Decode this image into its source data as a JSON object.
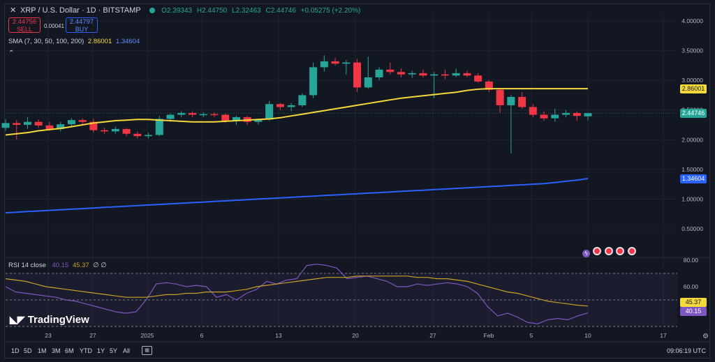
{
  "header": {
    "symbol": "XRP / U.S. Dollar · 1D · BITSTAMP",
    "open": "O2.39343",
    "high": "H2.44750",
    "low": "L2.32463",
    "close": "C2.44746",
    "change": "+0.05275 (+2.20%)"
  },
  "trade": {
    "sell_price": "2.44756",
    "sell_label": "SELL",
    "spread": "0.00041",
    "buy_price": "2.44797",
    "buy_label": "BUY"
  },
  "sma_legend": {
    "label": "SMA (7, 30, 50, 100, 200)",
    "v1": "2.86001",
    "v2": "1.34604"
  },
  "rsi_legend": {
    "label": "RSI 14 close",
    "v1": "40.15",
    "v2": "45.37",
    "extra": "∅ ∅"
  },
  "price_tags": {
    "sma_short": "2.86001",
    "last": "2.44746",
    "sma_long": "1.34604",
    "rsi_ma": "45.37",
    "rsi": "40.15"
  },
  "x_labels": [
    "23",
    "27",
    "2025",
    "6",
    "13",
    "20",
    "27",
    "Feb",
    "5",
    "10",
    "17"
  ],
  "timeframes": [
    "1D",
    "5D",
    "1M",
    "3M",
    "6M",
    "YTD",
    "1Y",
    "5Y",
    "All"
  ],
  "clock": "09:06:19 UTC",
  "brand": "TradingView",
  "colors": {
    "up": "#26a69a",
    "down": "#f23645",
    "sma_yellow": "#f5d83a",
    "sma_blue": "#2962ff",
    "rsi_line": "#7e57c2",
    "rsi_ma": "#c9a227"
  },
  "chart_data": [
    {
      "type": "candlestick",
      "title": "XRP / U.S. Dollar · 1D · BITSTAMP",
      "y_ticks": [
        "4.00000",
        "3.50000",
        "3.00000",
        "2.50000",
        "2.00000",
        "1.50000",
        "1.00000",
        "0.50000"
      ],
      "ylim": [
        0.3,
        4.2
      ],
      "x_tick_labels": [
        "23",
        "27",
        "2025",
        "6",
        "13",
        "20",
        "27",
        "Feb",
        "5",
        "10",
        "17"
      ],
      "candles": [
        {
          "o": 2.2,
          "h": 2.35,
          "l": 2.15,
          "c": 2.28
        },
        {
          "o": 2.28,
          "h": 2.33,
          "l": 2.0,
          "c": 2.25
        },
        {
          "o": 2.25,
          "h": 2.38,
          "l": 2.18,
          "c": 2.3
        },
        {
          "o": 2.3,
          "h": 2.34,
          "l": 2.2,
          "c": 2.24
        },
        {
          "o": 2.24,
          "h": 2.3,
          "l": 2.15,
          "c": 2.18
        },
        {
          "o": 2.18,
          "h": 2.3,
          "l": 2.14,
          "c": 2.26
        },
        {
          "o": 2.26,
          "h": 2.36,
          "l": 2.22,
          "c": 2.33
        },
        {
          "o": 2.33,
          "h": 2.36,
          "l": 2.25,
          "c": 2.3
        },
        {
          "o": 2.3,
          "h": 2.35,
          "l": 2.12,
          "c": 2.16
        },
        {
          "o": 2.16,
          "h": 2.2,
          "l": 2.1,
          "c": 2.14
        },
        {
          "o": 2.14,
          "h": 2.22,
          "l": 2.1,
          "c": 2.18
        },
        {
          "o": 2.18,
          "h": 2.2,
          "l": 2.06,
          "c": 2.1
        },
        {
          "o": 2.1,
          "h": 2.14,
          "l": 2.02,
          "c": 2.06
        },
        {
          "o": 2.06,
          "h": 2.12,
          "l": 2.02,
          "c": 2.08
        },
        {
          "o": 2.08,
          "h": 2.4,
          "l": 2.06,
          "c": 2.35
        },
        {
          "o": 2.35,
          "h": 2.44,
          "l": 2.3,
          "c": 2.42
        },
        {
          "o": 2.42,
          "h": 2.48,
          "l": 2.38,
          "c": 2.45
        },
        {
          "o": 2.45,
          "h": 2.48,
          "l": 2.38,
          "c": 2.42
        },
        {
          "o": 2.42,
          "h": 2.46,
          "l": 2.38,
          "c": 2.43
        },
        {
          "o": 2.43,
          "h": 2.46,
          "l": 2.38,
          "c": 2.42
        },
        {
          "o": 2.42,
          "h": 2.44,
          "l": 2.28,
          "c": 2.32
        },
        {
          "o": 2.32,
          "h": 2.4,
          "l": 2.25,
          "c": 2.38
        },
        {
          "o": 2.38,
          "h": 2.4,
          "l": 2.25,
          "c": 2.3
        },
        {
          "o": 2.3,
          "h": 2.35,
          "l": 2.26,
          "c": 2.34
        },
        {
          "o": 2.34,
          "h": 2.65,
          "l": 2.32,
          "c": 2.6
        },
        {
          "o": 2.6,
          "h": 2.62,
          "l": 2.5,
          "c": 2.55
        },
        {
          "o": 2.55,
          "h": 2.62,
          "l": 2.48,
          "c": 2.58
        },
        {
          "o": 2.58,
          "h": 2.78,
          "l": 2.55,
          "c": 2.75
        },
        {
          "o": 2.75,
          "h": 3.3,
          "l": 2.7,
          "c": 3.22
        },
        {
          "o": 3.22,
          "h": 3.42,
          "l": 3.15,
          "c": 3.32
        },
        {
          "o": 3.32,
          "h": 3.38,
          "l": 3.25,
          "c": 3.28
        },
        {
          "o": 3.28,
          "h": 3.34,
          "l": 3.1,
          "c": 3.3
        },
        {
          "o": 3.3,
          "h": 3.36,
          "l": 2.8,
          "c": 2.88
        },
        {
          "o": 2.88,
          "h": 3.4,
          "l": 2.86,
          "c": 3.05
        },
        {
          "o": 3.05,
          "h": 3.22,
          "l": 3.0,
          "c": 3.18
        },
        {
          "o": 3.18,
          "h": 3.3,
          "l": 3.1,
          "c": 3.14
        },
        {
          "o": 3.14,
          "h": 3.2,
          "l": 3.05,
          "c": 3.1
        },
        {
          "o": 3.1,
          "h": 3.16,
          "l": 3.04,
          "c": 3.12
        },
        {
          "o": 3.12,
          "h": 3.18,
          "l": 3.05,
          "c": 3.08
        },
        {
          "o": 3.08,
          "h": 3.14,
          "l": 2.7,
          "c": 3.1
        },
        {
          "o": 3.1,
          "h": 3.18,
          "l": 3.02,
          "c": 3.08
        },
        {
          "o": 3.08,
          "h": 3.2,
          "l": 3.05,
          "c": 3.12
        },
        {
          "o": 3.12,
          "h": 3.16,
          "l": 3.05,
          "c": 3.08
        },
        {
          "o": 3.08,
          "h": 3.12,
          "l": 2.96,
          "c": 2.98
        },
        {
          "o": 2.98,
          "h": 3.0,
          "l": 2.8,
          "c": 2.84
        },
        {
          "o": 2.84,
          "h": 2.86,
          "l": 2.45,
          "c": 2.58
        },
        {
          "o": 2.58,
          "h": 2.75,
          "l": 1.77,
          "c": 2.72
        },
        {
          "o": 2.72,
          "h": 2.8,
          "l": 2.52,
          "c": 2.55
        },
        {
          "o": 2.55,
          "h": 2.6,
          "l": 2.38,
          "c": 2.42
        },
        {
          "o": 2.42,
          "h": 2.48,
          "l": 2.32,
          "c": 2.36
        },
        {
          "o": 2.36,
          "h": 2.52,
          "l": 2.3,
          "c": 2.42
        },
        {
          "o": 2.42,
          "h": 2.5,
          "l": 2.38,
          "c": 2.45
        },
        {
          "o": 2.45,
          "h": 2.48,
          "l": 2.32,
          "c": 2.4
        },
        {
          "o": 2.39343,
          "h": 2.4475,
          "l": 2.32463,
          "c": 2.44746
        }
      ],
      "series": [
        {
          "name": "SMA short",
          "color": "#f5d83a",
          "values": [
            2.08,
            2.1,
            2.12,
            2.15,
            2.17,
            2.19,
            2.22,
            2.25,
            2.28,
            2.3,
            2.32,
            2.33,
            2.34,
            2.34,
            2.33,
            2.32,
            2.31,
            2.3,
            2.3,
            2.3,
            2.31,
            2.32,
            2.33,
            2.34,
            2.35,
            2.37,
            2.4,
            2.43,
            2.46,
            2.49,
            2.52,
            2.55,
            2.58,
            2.61,
            2.64,
            2.67,
            2.7,
            2.72,
            2.74,
            2.76,
            2.78,
            2.8,
            2.83,
            2.85,
            2.86,
            2.86,
            2.86,
            2.86,
            2.86,
            2.86,
            2.86,
            2.86,
            2.86,
            2.86001
          ]
        },
        {
          "name": "SMA long",
          "color": "#2962ff",
          "values": [
            0.77,
            0.78,
            0.79,
            0.8,
            0.81,
            0.82,
            0.83,
            0.84,
            0.85,
            0.86,
            0.87,
            0.88,
            0.89,
            0.9,
            0.91,
            0.92,
            0.93,
            0.94,
            0.95,
            0.96,
            0.97,
            0.98,
            0.99,
            1.0,
            1.01,
            1.02,
            1.03,
            1.04,
            1.05,
            1.06,
            1.07,
            1.08,
            1.09,
            1.1,
            1.11,
            1.12,
            1.13,
            1.14,
            1.15,
            1.16,
            1.17,
            1.18,
            1.19,
            1.2,
            1.21,
            1.22,
            1.23,
            1.24,
            1.25,
            1.26,
            1.28,
            1.3,
            1.32,
            1.34604
          ]
        }
      ]
    },
    {
      "type": "line",
      "title": "RSI 14 close",
      "y_ticks": [
        "80.00",
        "60.00"
      ],
      "ylim": [
        25,
        82
      ],
      "bands": [
        30,
        50,
        70
      ],
      "series": [
        {
          "name": "RSI",
          "color": "#7e57c2",
          "values": [
            60,
            56,
            55,
            54,
            53,
            52,
            50,
            49,
            47,
            45,
            43,
            41,
            40,
            41,
            50,
            62,
            63,
            62,
            60,
            61,
            60,
            52,
            54,
            50,
            55,
            58,
            64,
            62,
            65,
            66,
            76,
            77,
            76,
            74,
            66,
            67,
            68,
            66,
            64,
            60,
            60,
            62,
            61,
            62,
            63,
            62,
            60,
            55,
            45,
            38,
            40,
            37,
            33,
            32,
            35,
            36,
            35,
            38,
            40.15
          ]
        },
        {
          "name": "RSI MA",
          "color": "#c9a227",
          "values": [
            66,
            65,
            64,
            62,
            60,
            59,
            58,
            57,
            56,
            55,
            54,
            53,
            52,
            52,
            52,
            53,
            54,
            54,
            55,
            55,
            56,
            56,
            56,
            57,
            58,
            60,
            61,
            62,
            63,
            64,
            65,
            66,
            67,
            67,
            67,
            68,
            68,
            68,
            68,
            68,
            68,
            67,
            67,
            66,
            66,
            65,
            64,
            62,
            60,
            58,
            56,
            55,
            53,
            51,
            49,
            48,
            47,
            46,
            45.37
          ]
        }
      ]
    }
  ]
}
